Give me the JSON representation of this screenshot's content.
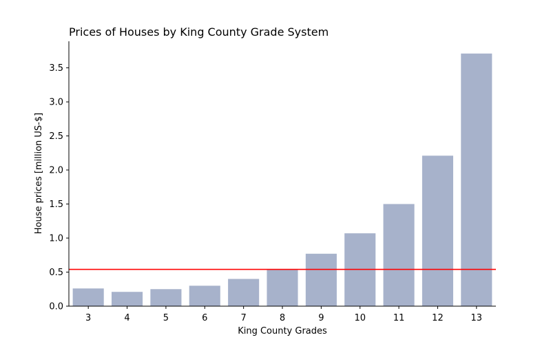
{
  "chart_data": {
    "type": "bar",
    "title": "Prices of Houses by King County Grade System",
    "xlabel": "King County Grades",
    "ylabel": "House prices [million US-$]",
    "categories": [
      "3",
      "4",
      "5",
      "6",
      "7",
      "8",
      "9",
      "10",
      "11",
      "12",
      "13"
    ],
    "values": [
      0.26,
      0.21,
      0.25,
      0.3,
      0.4,
      0.54,
      0.77,
      1.07,
      1.5,
      2.21,
      3.71
    ],
    "ylim": [
      0,
      3.89
    ],
    "yticks": [
      "0.0",
      "0.5",
      "1.0",
      "1.5",
      "2.0",
      "2.5",
      "3.0",
      "3.5"
    ],
    "reference_line": {
      "value": 0.54,
      "color": "#ff0000"
    },
    "bar_color": "#a7b2cb",
    "grid": false,
    "legend": "none"
  }
}
